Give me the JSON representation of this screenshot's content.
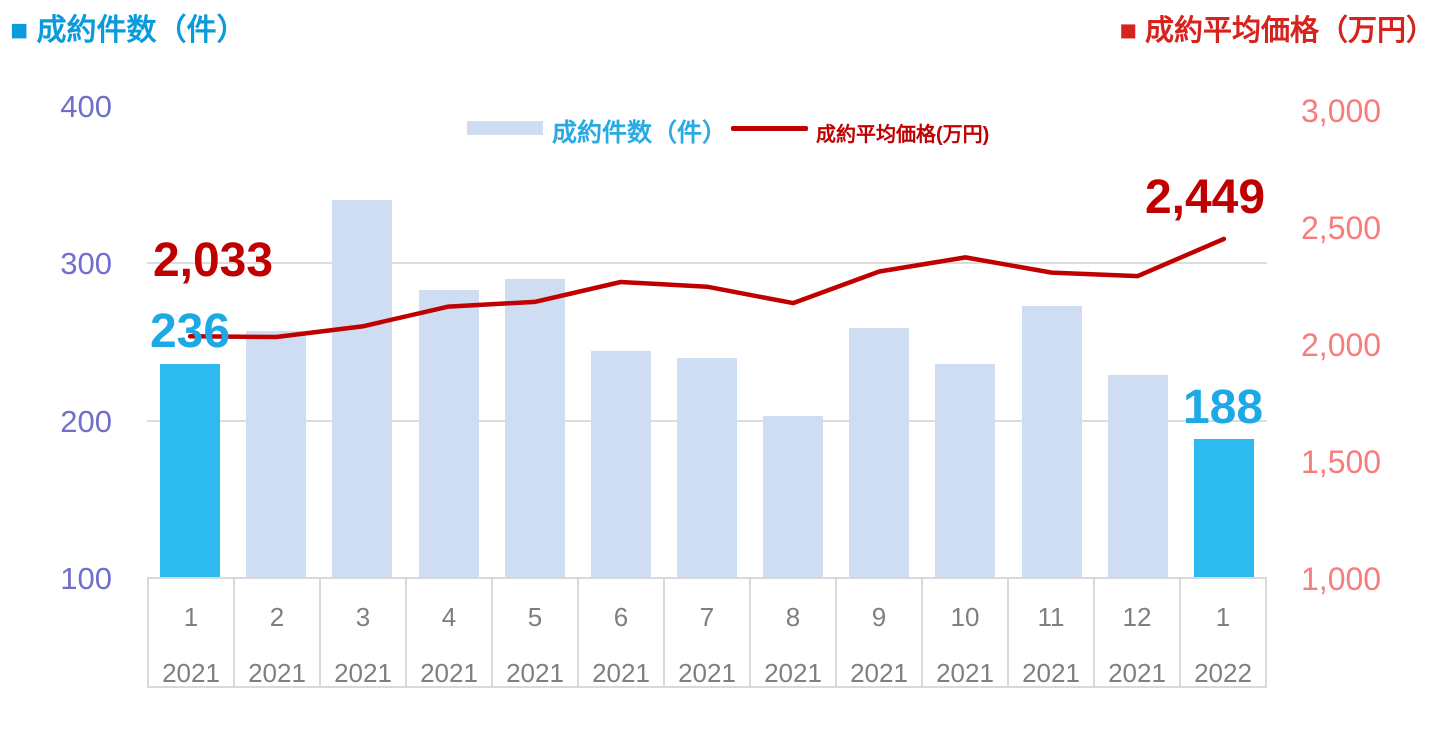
{
  "header": {
    "left_marker": "■",
    "left_title": "成約件数（件）",
    "left_color": "#0A9BDD",
    "right_marker": "■",
    "right_title": "成約平均価格（万円）",
    "right_color": "#D7231E"
  },
  "legend": {
    "bar_label": "成約件数（件）",
    "bar_label_color": "#29ABE2",
    "line_label": "成約平均価格(万円)",
    "line_label_color": "#C00000"
  },
  "chart_data": {
    "type": "combo-bar-line",
    "categories_month": [
      "1",
      "2",
      "3",
      "4",
      "5",
      "6",
      "7",
      "8",
      "9",
      "10",
      "11",
      "12",
      "1"
    ],
    "categories_year": [
      "2021",
      "2021",
      "2021",
      "2021",
      "2021",
      "2021",
      "2021",
      "2021",
      "2021",
      "2021",
      "2021",
      "2021",
      "2022"
    ],
    "series": [
      {
        "name": "成約件数（件）",
        "type": "bar",
        "axis": "left",
        "values": [
          236,
          257,
          340,
          283,
          290,
          244,
          240,
          203,
          259,
          236,
          273,
          229,
          188
        ]
      },
      {
        "name": "成約平均価格(万円)",
        "type": "line",
        "axis": "right",
        "values": [
          2033,
          2030,
          2075,
          2160,
          2180,
          2265,
          2245,
          2175,
          2310,
          2370,
          2305,
          2290,
          2449
        ]
      }
    ],
    "left_axis": {
      "ticks": [
        "400",
        "300",
        "200",
        "100"
      ],
      "values": [
        400,
        300,
        200,
        100
      ],
      "range": [
        100,
        400
      ],
      "color": "#7070CC"
    },
    "right_axis": {
      "ticks": [
        "3,000",
        "2,500",
        "2,000",
        "1,500",
        "1,000"
      ],
      "values": [
        3000,
        2500,
        2000,
        1500,
        1000
      ],
      "range": [
        1000,
        3000
      ],
      "color": "#F97C7C"
    },
    "gridlines": {
      "left_values": [
        300,
        200
      ],
      "color": "#DCDCDC"
    },
    "annotations": {
      "first_price": "2,033",
      "first_count": "236",
      "last_price": "2,449",
      "last_count": "188"
    },
    "highlight_indices": [
      0,
      12
    ],
    "colors": {
      "bar_default": "#CEDDF2",
      "bar_highlight": "#2DBAEF",
      "line": "#C00000",
      "count_label": "#1CA9E5",
      "price_label": "#C00000",
      "x_label": "#7F7F7F",
      "table_border": "#D9D9D9"
    },
    "legend_position": "top-center",
    "grid": "horizontal-only"
  }
}
